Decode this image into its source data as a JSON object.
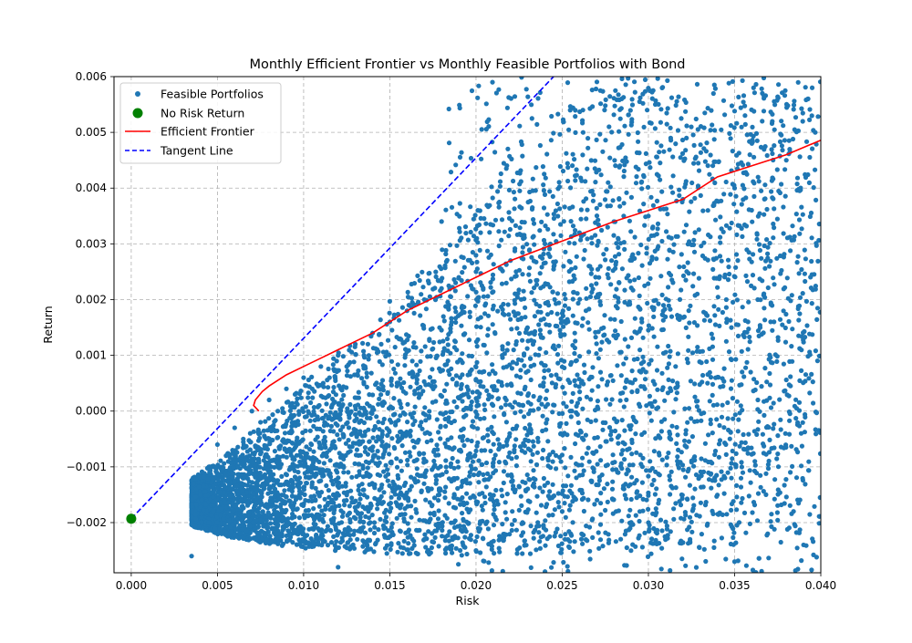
{
  "chart_data": {
    "type": "scatter",
    "title": "Monthly Efficient Frontier vs Monthly Feasible Portfolios with Bond",
    "xlabel": "Risk",
    "ylabel": "Return",
    "xlim": [
      -0.001,
      0.04
    ],
    "ylim": [
      -0.0029,
      0.006
    ],
    "xticks": [
      0.0,
      0.005,
      0.01,
      0.015,
      0.02,
      0.025,
      0.03,
      0.035,
      0.04
    ],
    "xtick_labels": [
      "0.000",
      "0.005",
      "0.010",
      "0.015",
      "0.020",
      "0.025",
      "0.030",
      "0.035",
      "0.040"
    ],
    "yticks": [
      -0.002,
      -0.001,
      0.0,
      0.001,
      0.002,
      0.003,
      0.004,
      0.005,
      0.006
    ],
    "ytick_labels": [
      "−0.002",
      "−0.001",
      "0.000",
      "0.001",
      "0.002",
      "0.003",
      "0.004",
      "0.005",
      "0.006"
    ],
    "grid": true,
    "legend_position": "top-left",
    "colors": {
      "feasible": "#1f77b4",
      "no_risk": "#008000",
      "frontier": "#ff0000",
      "tangent": "#0000ff"
    },
    "series": [
      {
        "name": "Feasible Portfolios",
        "kind": "scatter",
        "note": "several thousand simulated portfolios; dense cloud below the frontier, sparse beyond risk 0.02",
        "points": [
          [
            0.005,
            -0.0006
          ],
          [
            0.0055,
            -0.0008
          ],
          [
            0.006,
            -0.0003
          ],
          [
            0.0065,
            -0.0005
          ],
          [
            0.007,
            0.0
          ],
          [
            0.0075,
            -0.0002
          ],
          [
            0.008,
            0.0002
          ],
          [
            0.0085,
            0.0
          ],
          [
            0.009,
            0.0004
          ],
          [
            0.0095,
            0.0003
          ],
          [
            0.01,
            0.0006
          ],
          [
            0.0105,
            0.0004
          ],
          [
            0.011,
            0.0008
          ],
          [
            0.0115,
            0.0006
          ],
          [
            0.012,
            0.001
          ],
          [
            0.0125,
            0.0008
          ],
          [
            0.013,
            0.0012
          ],
          [
            0.0135,
            0.001
          ],
          [
            0.014,
            0.0014
          ],
          [
            0.0145,
            0.0012
          ],
          [
            0.015,
            0.0016
          ],
          [
            0.016,
            0.0018
          ],
          [
            0.017,
            0.002
          ],
          [
            0.018,
            0.0022
          ],
          [
            0.019,
            0.0024
          ],
          [
            0.02,
            0.0025
          ],
          [
            0.022,
            0.0027
          ],
          [
            0.024,
            0.003
          ],
          [
            0.026,
            0.0032
          ],
          [
            0.028,
            0.0034
          ],
          [
            0.03,
            0.0035
          ],
          [
            0.032,
            0.0038
          ],
          [
            0.035,
            0.004
          ],
          [
            0.038,
            0.0045
          ],
          [
            0.0035,
            -0.0026
          ],
          [
            0.0045,
            -0.002
          ],
          [
            0.012,
            -0.0028
          ],
          [
            0.02,
            -0.0025
          ],
          [
            0.025,
            -0.0018
          ],
          [
            0.03,
            -0.002
          ],
          [
            0.035,
            -0.0027
          ],
          [
            0.039,
            -0.0024
          ],
          [
            0.0262,
            0.0054
          ],
          [
            0.0304,
            0.0055
          ],
          [
            0.0361,
            0.0058
          ],
          [
            0.0395,
            0.0058
          ],
          [
            0.0366,
            0.0052
          ],
          [
            0.0281,
            0.0061
          ]
        ]
      },
      {
        "name": "No Risk Return",
        "kind": "point",
        "points": [
          [
            0.0,
            -0.00193
          ]
        ]
      },
      {
        "name": "Efficient Frontier",
        "kind": "line",
        "points": [
          [
            0.0074,
            0.0
          ],
          [
            0.0071,
            0.0001
          ],
          [
            0.0072,
            0.0002
          ],
          [
            0.0076,
            0.00035
          ],
          [
            0.008,
            0.00045
          ],
          [
            0.009,
            0.00065
          ],
          [
            0.01,
            0.0008
          ],
          [
            0.011,
            0.00095
          ],
          [
            0.012,
            0.0011
          ],
          [
            0.013,
            0.00125
          ],
          [
            0.014,
            0.0014
          ],
          [
            0.015,
            0.0016
          ],
          [
            0.016,
            0.0018
          ],
          [
            0.018,
            0.0021
          ],
          [
            0.02,
            0.0024
          ],
          [
            0.022,
            0.0027
          ],
          [
            0.025,
            0.00305
          ],
          [
            0.028,
            0.0034
          ],
          [
            0.03,
            0.0036
          ],
          [
            0.032,
            0.0038
          ],
          [
            0.034,
            0.0042
          ],
          [
            0.036,
            0.0044
          ],
          [
            0.038,
            0.0046
          ],
          [
            0.04,
            0.00486
          ]
        ]
      },
      {
        "name": "Tangent Line",
        "kind": "dashed-line",
        "points": [
          [
            0.0,
            -0.00193
          ],
          [
            0.0245,
            0.006
          ]
        ]
      }
    ]
  }
}
